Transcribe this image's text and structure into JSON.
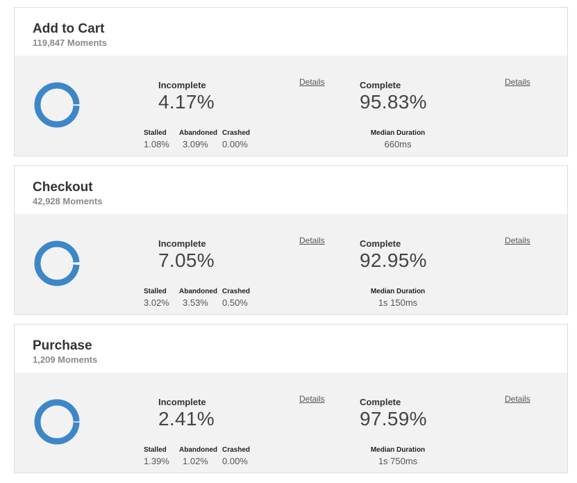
{
  "colors": {
    "accent": "#3d87c8",
    "panel": "#f2f2f2"
  },
  "cards": [
    {
      "title": "Add to Cart",
      "moments": "119,847 Moments",
      "incomplete_label": "Incomplete",
      "incomplete_pct": "4.17%",
      "incomplete_fraction": 0.0417,
      "complete_label": "Complete",
      "complete_pct": "95.83%",
      "details_label": "Details",
      "stalled_label": "Stalled",
      "stalled": "1.08%",
      "abandoned_label": "Abandoned",
      "abandoned": "3.09%",
      "crashed_label": "Crashed",
      "crashed": "0.00%",
      "median_label": "Median Duration",
      "median": "660ms"
    },
    {
      "title": "Checkout",
      "moments": "42,928 Moments",
      "incomplete_label": "Incomplete",
      "incomplete_pct": "7.05%",
      "incomplete_fraction": 0.0705,
      "complete_label": "Complete",
      "complete_pct": "92.95%",
      "details_label": "Details",
      "stalled_label": "Stalled",
      "stalled": "3.02%",
      "abandoned_label": "Abandoned",
      "abandoned": "3.53%",
      "crashed_label": "Crashed",
      "crashed": "0.50%",
      "median_label": "Median Duration",
      "median": "1s 150ms"
    },
    {
      "title": "Purchase",
      "moments": "1,209 Moments",
      "incomplete_label": "Incomplete",
      "incomplete_pct": "2.41%",
      "incomplete_fraction": 0.0241,
      "complete_label": "Complete",
      "complete_pct": "97.59%",
      "details_label": "Details",
      "stalled_label": "Stalled",
      "stalled": "1.39%",
      "abandoned_label": "Abandoned",
      "abandoned": "1.02%",
      "crashed_label": "Crashed",
      "crashed": "0.00%",
      "median_label": "Median Duration",
      "median": "1s 750ms"
    }
  ]
}
